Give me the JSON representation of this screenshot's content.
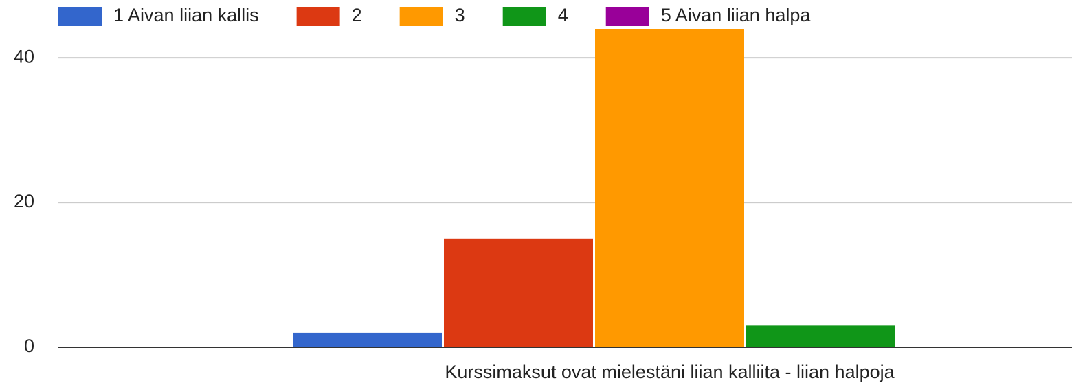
{
  "chart_data": {
    "type": "bar",
    "categories": [
      "Kurssimaksut ovat mielestäni liian kalliita - liian halpoja"
    ],
    "series": [
      {
        "name": "1 Aivan liian kallis",
        "color": "#3366cc",
        "values": [
          2
        ]
      },
      {
        "name": "2",
        "color": "#dc3912",
        "values": [
          15
        ]
      },
      {
        "name": "3",
        "color": "#ff9900",
        "values": [
          44
        ]
      },
      {
        "name": "4",
        "color": "#109618",
        "values": [
          3
        ]
      },
      {
        "name": "5 Aivan liian halpa",
        "color": "#990099",
        "values": [
          0
        ]
      }
    ],
    "ylim": [
      0,
      44
    ],
    "yticks": [
      0,
      20,
      40
    ],
    "grid": true,
    "legend": "top"
  }
}
